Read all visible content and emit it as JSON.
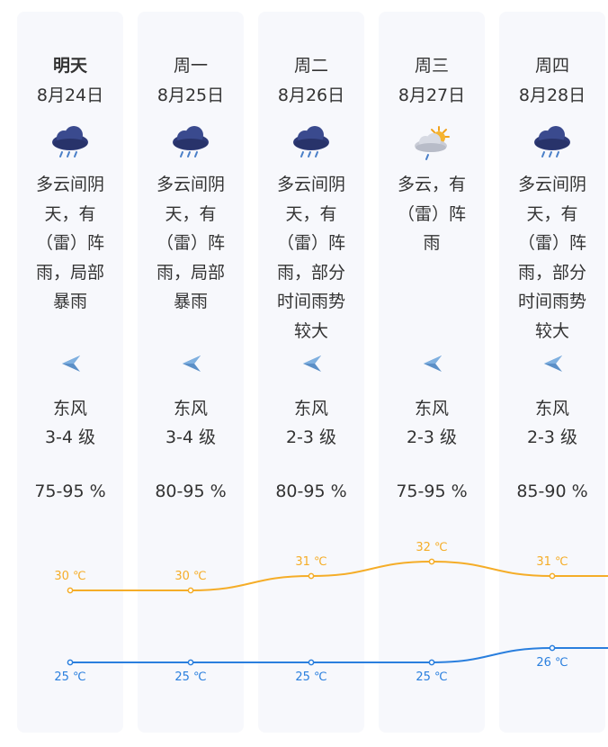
{
  "days": [
    {
      "day": "明天",
      "date": "8月24日",
      "icon": "heavy-rain-cloud-icon",
      "desc": "多云间阴天，有（雷）阵雨，局部暴雨",
      "wind": "东风",
      "level": "3-4 级",
      "humidity": "75-95 %"
    },
    {
      "day": "周一",
      "date": "8月25日",
      "icon": "heavy-rain-cloud-icon",
      "desc": "多云间阴天，有（雷）阵雨，局部暴雨",
      "wind": "东风",
      "level": "3-4 级",
      "humidity": "80-95 %"
    },
    {
      "day": "周二",
      "date": "8月26日",
      "icon": "heavy-rain-cloud-icon",
      "desc": "多云间阴天，有（雷）阵雨，部分时间雨势较大",
      "wind": "东风",
      "level": "2-3 级",
      "humidity": "80-95 %"
    },
    {
      "day": "周三",
      "date": "8月27日",
      "icon": "sun-cloud-rain-icon",
      "desc": "多云，有（雷）阵雨",
      "wind": "东风",
      "level": "2-3 级",
      "humidity": "75-95 %"
    },
    {
      "day": "周四",
      "date": "8月28日",
      "icon": "heavy-rain-cloud-icon",
      "desc": "多云间阴天，有（雷）阵雨，部分时间雨势较大",
      "wind": "东风",
      "level": "2-3 级",
      "humidity": "85-90 %"
    }
  ],
  "colors": {
    "high": "#f5ad28",
    "low": "#2a7fde",
    "column_bg": "#f7f8fc",
    "wind_arrow": "#5b8fc7"
  },
  "chart_data": {
    "type": "line",
    "categories": [
      "8月24日",
      "8月25日",
      "8月26日",
      "8月27日",
      "8月28日"
    ],
    "series": [
      {
        "values": [
          30,
          30,
          31,
          32,
          31
        ],
        "labels": [
          "30 ℃",
          "30 ℃",
          "31 ℃",
          "32 ℃",
          "31 ℃"
        ]
      },
      {
        "values": [
          25,
          25,
          25,
          25,
          26
        ],
        "labels": [
          "25 ℃",
          "25 ℃",
          "25 ℃",
          "25 ℃",
          "26 ℃"
        ]
      }
    ]
  }
}
